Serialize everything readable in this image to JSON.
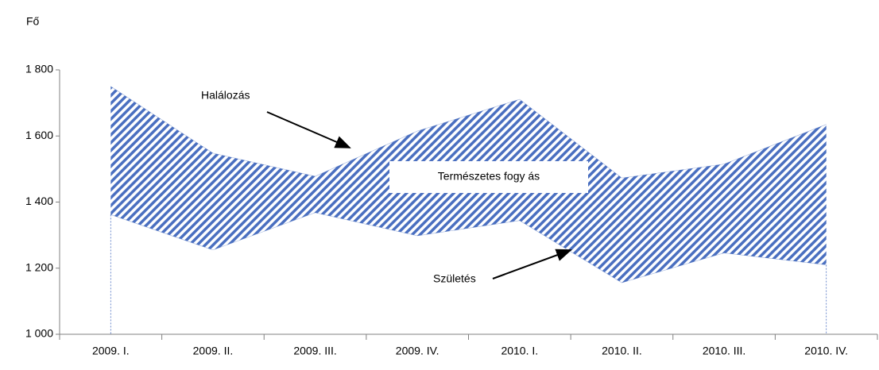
{
  "chart_data": {
    "type": "range_area",
    "y_label": "Fő",
    "categories": [
      "2009. I.",
      "2009. II.",
      "2009. III.",
      "2009. IV.",
      "2010. I.",
      "2010. II.",
      "2010. III.",
      "2010. IV."
    ],
    "series": [
      {
        "name": "Halálozás",
        "color": "#4a6fc0",
        "values": [
          1750,
          1548,
          1478,
          1615,
          1711,
          1473,
          1515,
          1635
        ]
      },
      {
        "name": "Születés",
        "color": "#4a6fc0",
        "values": [
          1362,
          1255,
          1368,
          1298,
          1344,
          1156,
          1246,
          1210
        ]
      }
    ],
    "band_label": "Természetes fogy ás",
    "ylim": [
      1000,
      1800
    ],
    "yticks": [
      {
        "value": 1000,
        "label": "1 000"
      },
      {
        "value": 1200,
        "label": "1 200"
      },
      {
        "value": 1400,
        "label": "1 400"
      },
      {
        "value": 1600,
        "label": "1 600"
      },
      {
        "value": 1800,
        "label": "1 800"
      }
    ],
    "grid": false
  }
}
